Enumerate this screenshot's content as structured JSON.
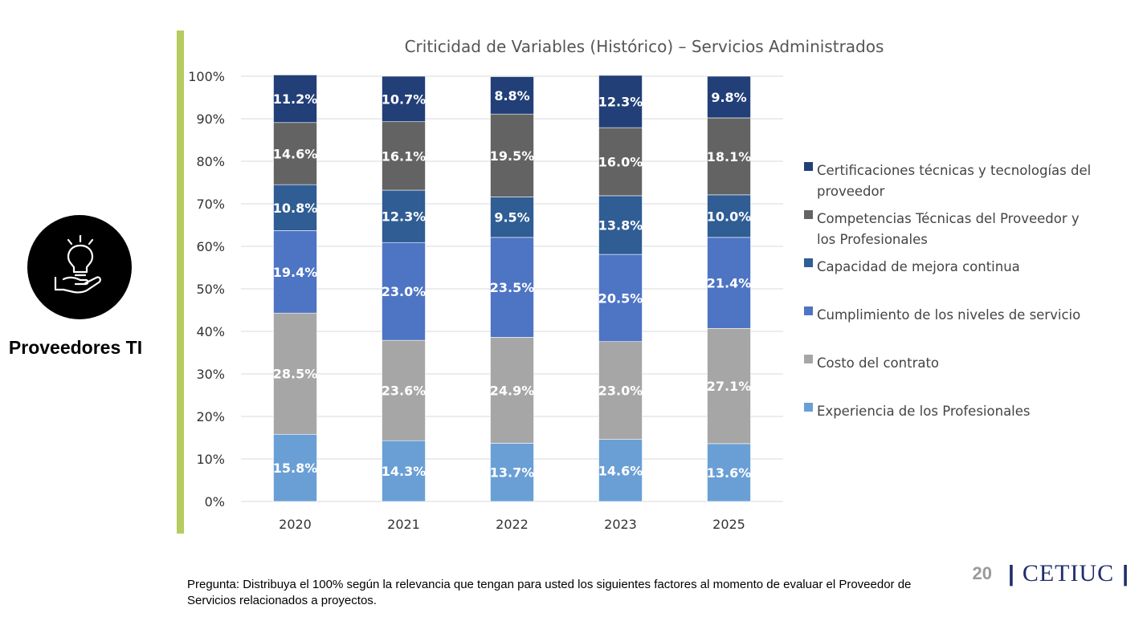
{
  "section": {
    "title": "Proveedores TI",
    "icon": "lightbulb-hand-icon"
  },
  "question": "Pregunta: Distribuya el 100% según la relevancia que tengan para usted los siguientes factores al momento de evaluar el Proveedor de Servicios relacionados a proyectos.",
  "footer": {
    "page": "20",
    "separator": "|",
    "brand": "CETIUC"
  },
  "colors": {
    "accent_bar": "#b5cc5f",
    "brand": "#1f2d6b"
  },
  "chart_data": {
    "type": "bar",
    "stacked": "percent",
    "title": "Criticidad de Variables (Histórico) – Servicios Administrados",
    "categories": [
      "2020",
      "2021",
      "2022",
      "2023",
      "2025"
    ],
    "y_ticks": [
      "0%",
      "10%",
      "20%",
      "30%",
      "40%",
      "50%",
      "60%",
      "70%",
      "80%",
      "90%",
      "100%"
    ],
    "ylim": [
      0,
      100
    ],
    "grid": true,
    "legend_position": "right",
    "series": [
      {
        "name": "Experiencia de los Profesionales",
        "color": "#6a9fd5",
        "values": [
          15.8,
          14.3,
          13.7,
          14.6,
          13.6
        ],
        "labels": [
          "15.8%",
          "14.3%",
          "13.7%",
          "14.6%",
          "13.6%"
        ]
      },
      {
        "name": "Costo del contrato",
        "color": "#a6a6a6",
        "values": [
          28.5,
          23.6,
          24.9,
          23.0,
          27.1
        ],
        "labels": [
          "28.5%",
          "23.6%",
          "24.9%",
          "23.0%",
          "27.1%"
        ]
      },
      {
        "name": "Cumplimiento de los niveles de servicio",
        "color": "#4e74c4",
        "values": [
          19.4,
          23.0,
          23.5,
          20.5,
          21.4
        ],
        "labels": [
          "19.4%",
          "23.0%",
          "23.5%",
          "20.5%",
          "21.4%"
        ]
      },
      {
        "name": "Capacidad de mejora continua",
        "color": "#2f5d94",
        "values": [
          10.8,
          12.3,
          9.5,
          13.8,
          10.0
        ],
        "labels": [
          "10.8%",
          "12.3%",
          "9.5%",
          "13.8%",
          "10.0%"
        ]
      },
      {
        "name": "Competencias Técnicas del Proveedor y los Profesionales",
        "color": "#636363",
        "values": [
          14.6,
          16.1,
          19.5,
          16.0,
          18.1
        ],
        "labels": [
          "14.6%",
          "16.1%",
          "19.5%",
          "16.0%",
          "18.1%"
        ]
      },
      {
        "name": "Certificaciones técnicas y tecnologías del proveedor",
        "color": "#223f78",
        "values": [
          11.2,
          10.7,
          8.8,
          12.3,
          9.8
        ],
        "labels": [
          "11.2%",
          "10.7%",
          "8.8%",
          "12.3%",
          "9.8%"
        ]
      }
    ],
    "legend": [
      [
        "Certificaciones técnicas y tecnologías del",
        "proveedor"
      ],
      [
        "Competencias Técnicas del Proveedor y",
        "los Profesionales"
      ],
      [
        "Capacidad de mejora continua"
      ],
      [
        "Cumplimiento de los niveles de servicio"
      ],
      [
        "Costo del contrato"
      ],
      [
        "Experiencia de los Profesionales"
      ]
    ]
  }
}
